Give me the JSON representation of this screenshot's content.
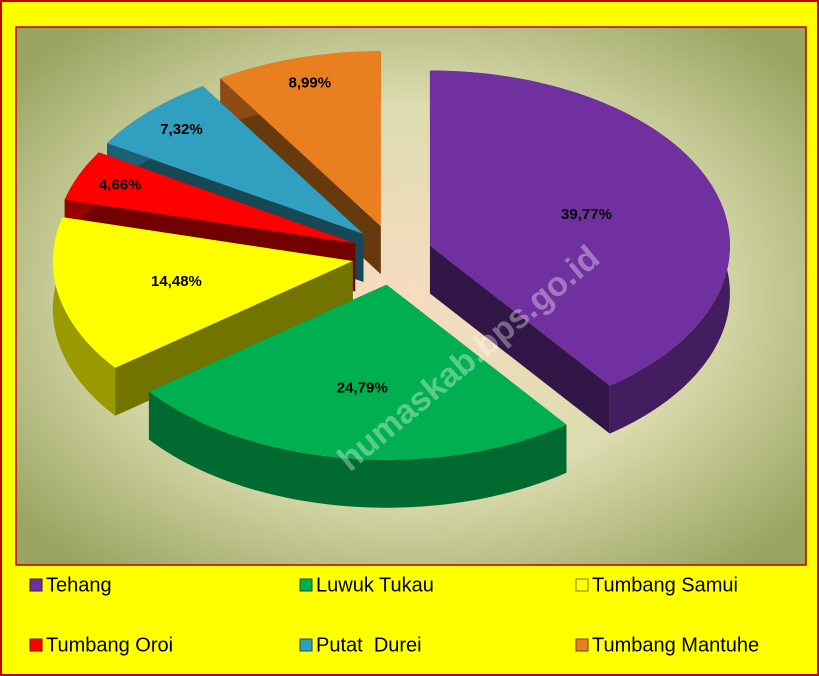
{
  "chart_data": {
    "type": "pie",
    "categories": [
      "Tehang",
      "Luwuk Tukau",
      "Tumbang Samui",
      "Tumbang Oroi",
      "Putat  Durei",
      "Tumbang Mantuhe"
    ],
    "values": [
      39.77,
      24.79,
      14.48,
      4.66,
      7.32,
      8.99
    ],
    "value_labels": [
      "39,77%",
      "24,79%",
      "14,48%",
      "4,66%",
      "7,32%",
      "8,99%"
    ],
    "colors": [
      "#7030a0",
      "#00b050",
      "#ffff00",
      "#ff0000",
      "#31a0c0",
      "#e97f1f"
    ],
    "legend": "bottom"
  },
  "watermark": "humaskab.bps.go.id"
}
